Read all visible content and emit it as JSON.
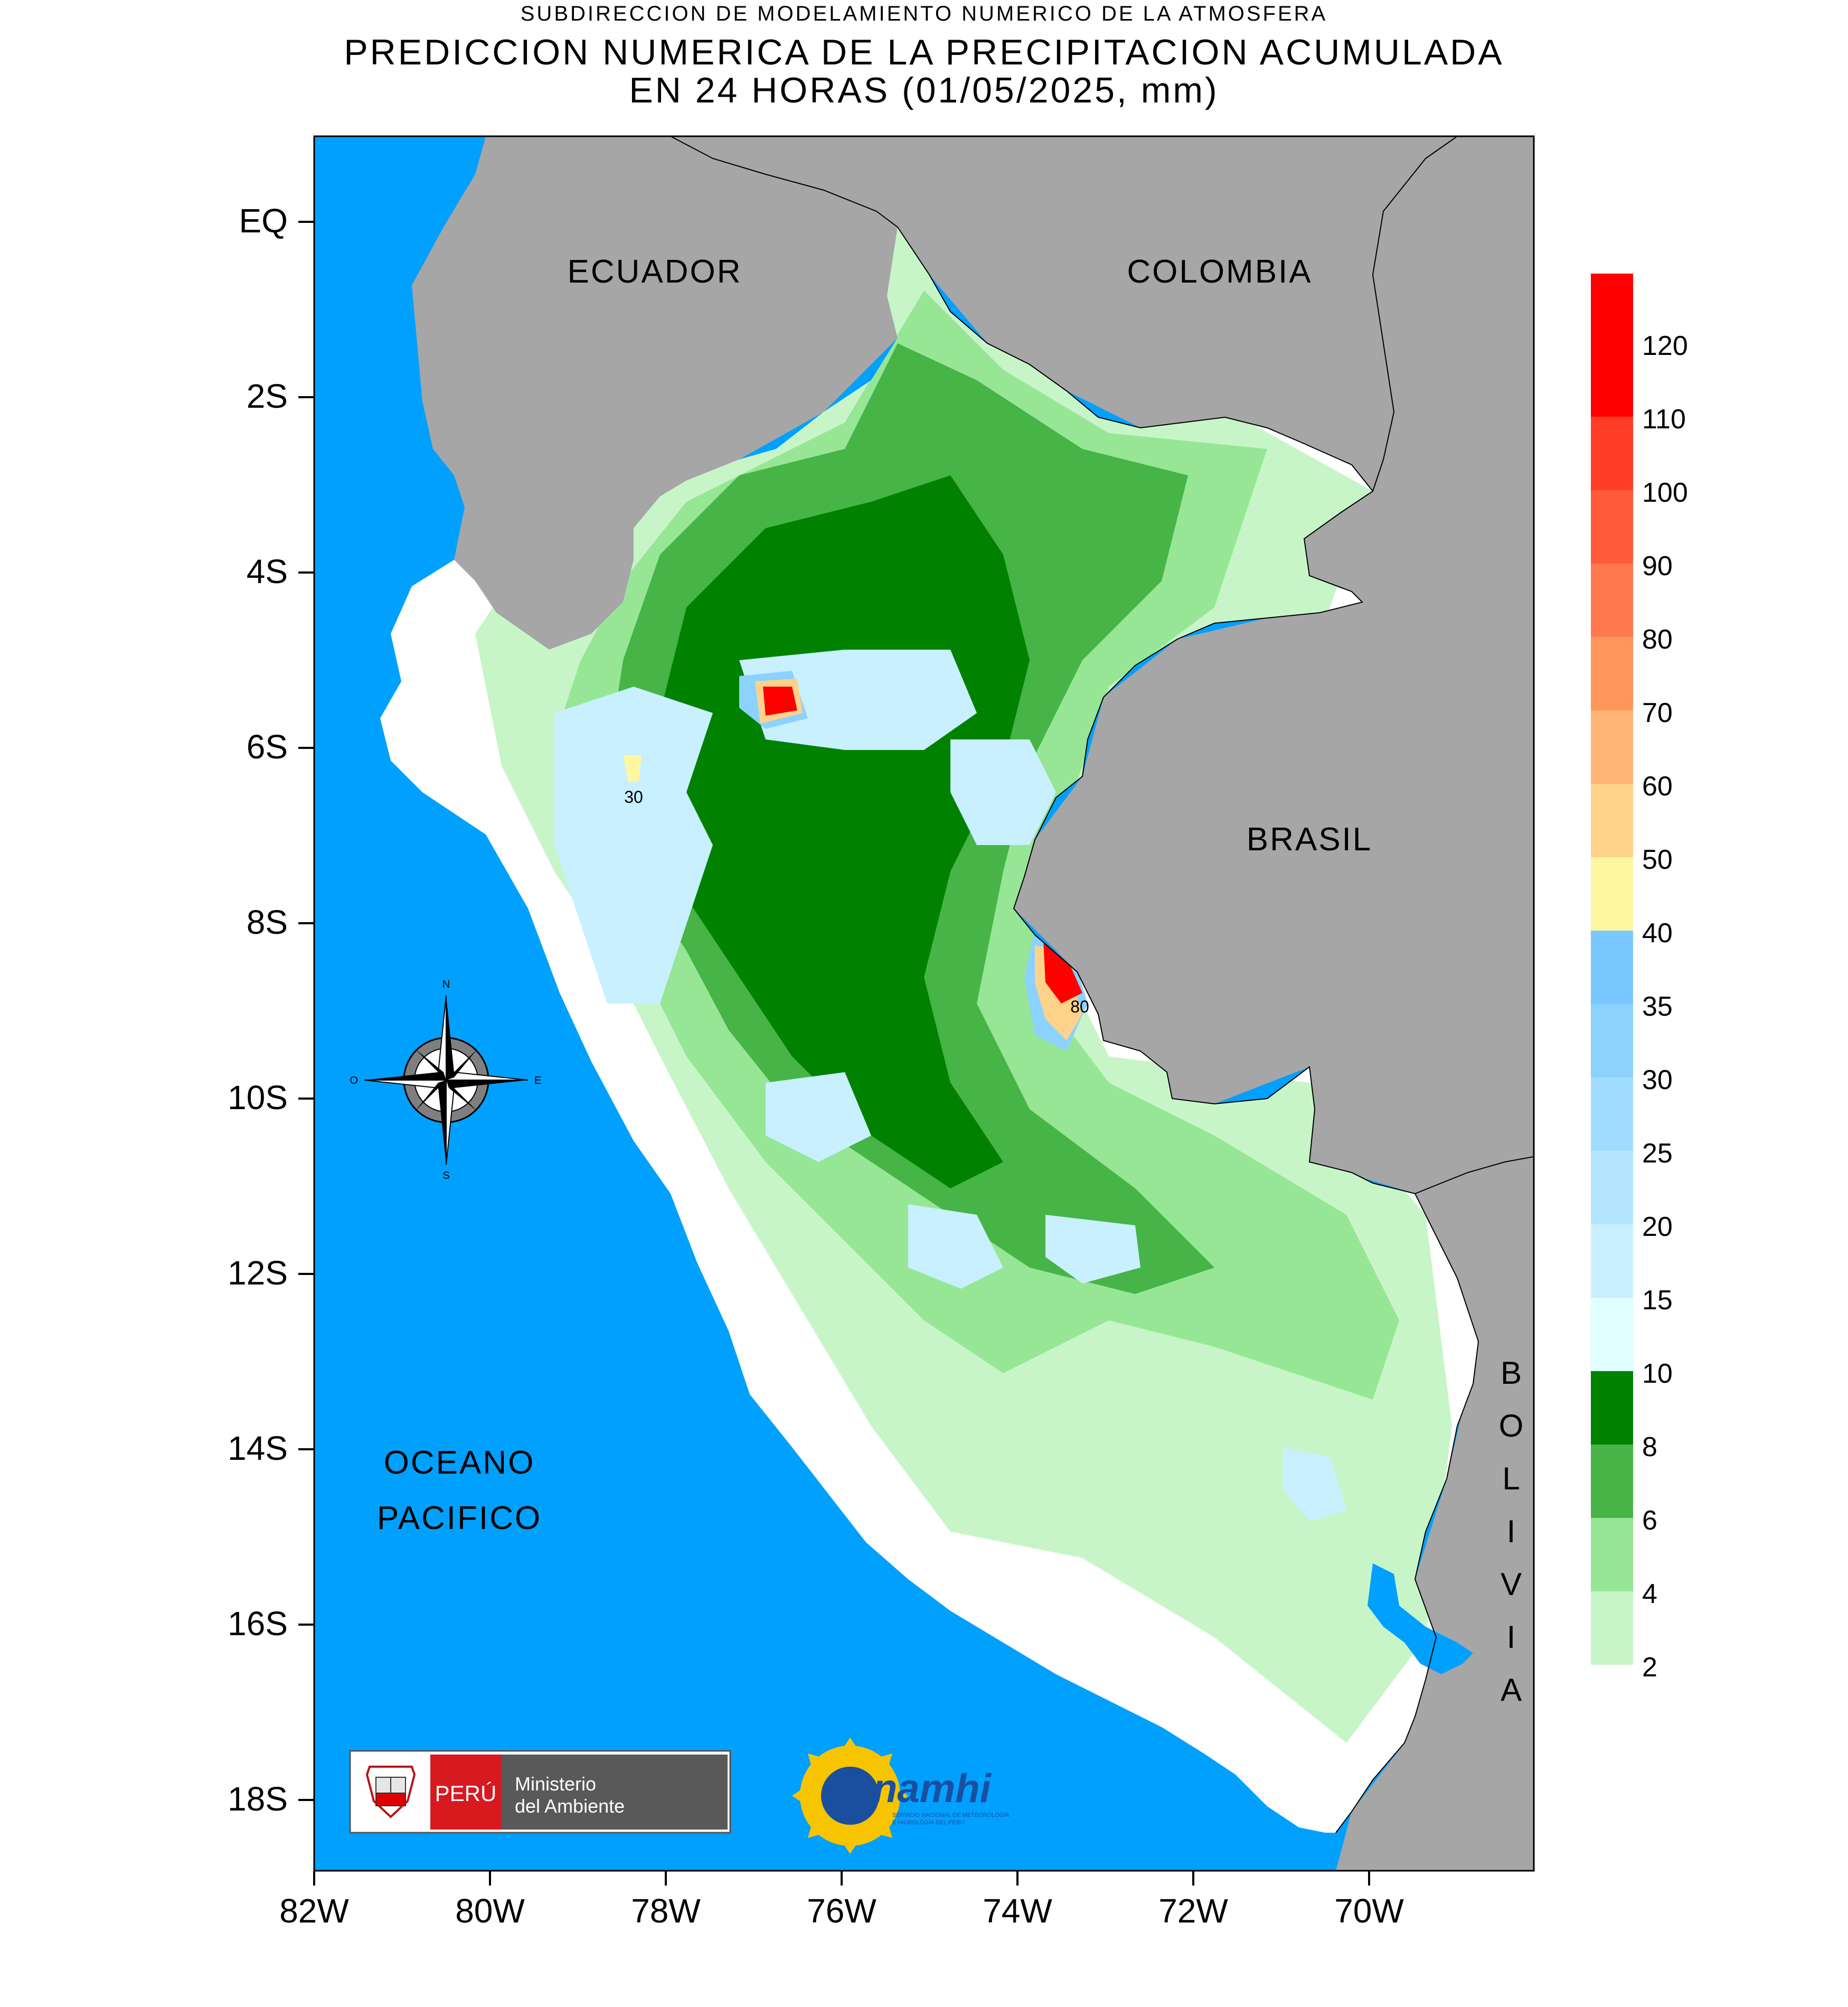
{
  "header": {
    "agency_line": "SUBDIRECCION DE MODELAMIENTO NUMERICO DE LA ATMOSFERA",
    "title_line1": "PREDICCION NUMERICA DE LA PRECIPITACION ACUMULADA",
    "title_line2": "EN 24 HORAS (01/05/2025, mm)"
  },
  "map": {
    "latitude_ticks": [
      "EQ",
      "2S",
      "4S",
      "6S",
      "8S",
      "10S",
      "12S",
      "14S",
      "16S",
      "18S"
    ],
    "longitude_ticks": [
      "82W",
      "80W",
      "78W",
      "76W",
      "74W",
      "72W",
      "70W"
    ],
    "country_labels": {
      "ecuador": "ECUADOR",
      "colombia": "COLOMBIA",
      "brasil": "BRASIL",
      "bolivia_letters": [
        "B",
        "O",
        "L",
        "I",
        "V",
        "I",
        "A"
      ]
    },
    "ocean_label": {
      "line1": "OCEANO",
      "line2": "PACIFICO"
    },
    "contour_labels": [
      "30",
      "80"
    ],
    "compass": {
      "n": "N",
      "s": "S",
      "e": "E",
      "o": "O"
    },
    "colors": {
      "ocean": "#00a0ff",
      "neighbor_land": "#a6a6a6",
      "peru_land": "#ffffff",
      "legend_colors_bottom_to_top": [
        "#c8f5c8",
        "#96e696",
        "#46b446",
        "#008200",
        "#e0ffff",
        "#c8f0ff",
        "#b4e6ff",
        "#a0dcff",
        "#8cd2ff",
        "#78c8ff",
        "#fff7a0",
        "#ffd28c",
        "#ffb478",
        "#ff965a",
        "#ff7850",
        "#ff5a3c",
        "#ff3c28",
        "#ff0000"
      ]
    }
  },
  "legend": {
    "labels": [
      "2",
      "4",
      "6",
      "8",
      "10",
      "15",
      "20",
      "25",
      "30",
      "35",
      "40",
      "50",
      "60",
      "70",
      "80",
      "90",
      "100",
      "110",
      "120"
    ]
  },
  "logos": {
    "peru_text": "PERÚ",
    "ministry_line1": "Ministerio",
    "ministry_line2": "del Ambiente",
    "senamhi_name": "Senamhi",
    "senamhi_subtitle_line1": "SERVICIO NACIONAL DE METEOROLOGÍA",
    "senamhi_subtitle_line2": "E HIDROLOGÍA DEL PERÚ"
  }
}
